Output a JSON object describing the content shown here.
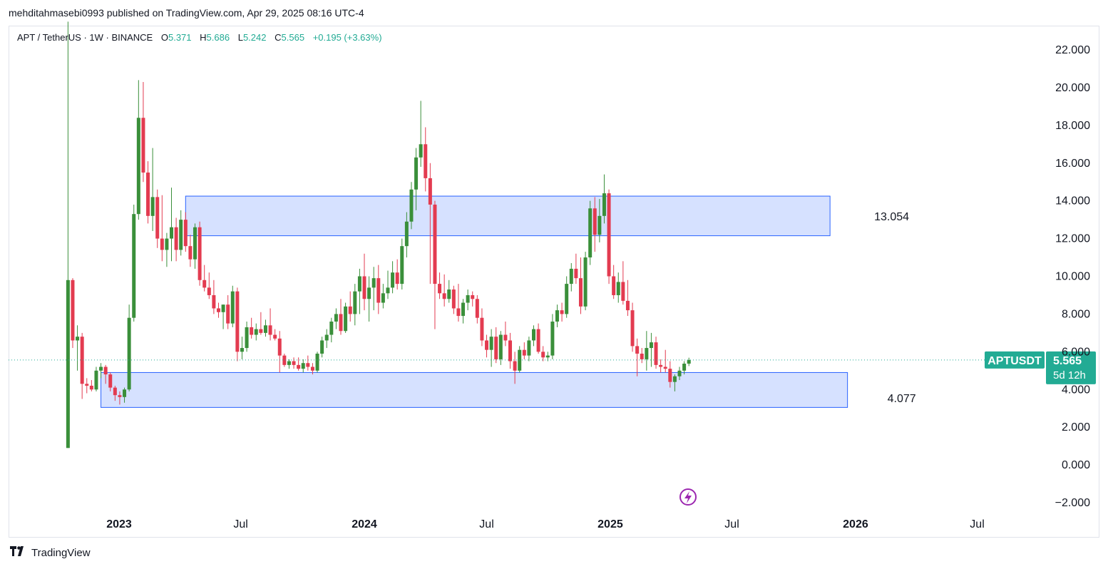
{
  "header": {
    "publish_line": "mehditahmasebi0993 published on TradingView.com, Apr 29, 2025 08:16 UTC-4"
  },
  "legend": {
    "symbol": "APT / TetherUS · 1W · BINANCE",
    "open_key": "O",
    "open_value": "5.371",
    "high_key": "H",
    "high_value": "5.686",
    "low_key": "L",
    "low_value": "5.242",
    "close_key": "C",
    "close_value": "5.565",
    "change": "+0.195 (+3.63%)"
  },
  "price_tag": {
    "symbol": "APTUSDT",
    "price": "5.565",
    "countdown": "5d 12h",
    "color": "#22ab94"
  },
  "colors": {
    "up": "#22ab94",
    "up_candle": "#3a8f3a",
    "down_candle": "#e33b50",
    "zone_fill": "#d6e1ff",
    "zone_border": "#2962ff",
    "pulse_icon": "#9c27b0"
  },
  "footer": {
    "brand": "TradingView",
    "logo_icon": "tradingview-logo-icon"
  },
  "chart_data": {
    "type": "candlestick",
    "title": "APT / TetherUS · 1W · BINANCE",
    "y_axis": {
      "ticks": [
        "22.000",
        "20.000",
        "18.000",
        "16.000",
        "14.000",
        "12.000",
        "10.000",
        "8.000",
        "6.000",
        "4.000",
        "2.000",
        "0.000",
        "−2.000"
      ],
      "range": [
        -2.6,
        23.4
      ],
      "side": "right"
    },
    "x_axis": {
      "ticks": [
        {
          "label": "2023",
          "date": "2023-01-01",
          "bold": true
        },
        {
          "label": "Jul",
          "date": "2023-07-01",
          "bold": false
        },
        {
          "label": "2024",
          "date": "2024-01-01",
          "bold": true
        },
        {
          "label": "Jul",
          "date": "2024-07-01",
          "bold": false
        },
        {
          "label": "2025",
          "date": "2025-01-01",
          "bold": true
        },
        {
          "label": "Jul",
          "date": "2025-07-01",
          "bold": false
        },
        {
          "label": "2026",
          "date": "2026-01-01",
          "bold": true
        },
        {
          "label": "Jul",
          "date": "2026-07-01",
          "bold": false
        }
      ]
    },
    "zones": [
      {
        "name": "resistance",
        "label": "13.054",
        "top": 14.25,
        "bottom": 12.15,
        "from": "2023-04-10",
        "to": "2025-11-24"
      },
      {
        "name": "support",
        "label": "4.077",
        "top": 4.9,
        "bottom": 3.05,
        "from": "2022-12-05",
        "to": "2025-12-20"
      }
    ],
    "last_price": 5.565,
    "candles": [
      [
        "2022-10-17",
        0.9,
        23.5,
        0.9,
        9.8
      ],
      [
        "2022-10-24",
        9.8,
        9.9,
        6.2,
        6.6
      ],
      [
        "2022-10-31",
        6.6,
        7.4,
        5.0,
        6.8
      ],
      [
        "2022-11-07",
        6.8,
        7.0,
        3.5,
        4.3
      ],
      [
        "2022-11-14",
        4.3,
        4.6,
        3.8,
        4.2
      ],
      [
        "2022-11-21",
        4.2,
        4.5,
        3.9,
        4.0
      ],
      [
        "2022-11-28",
        4.0,
        5.2,
        3.9,
        5.0
      ],
      [
        "2022-12-05",
        5.0,
        5.4,
        4.6,
        5.2
      ],
      [
        "2022-12-12",
        5.2,
        5.3,
        4.3,
        4.8
      ],
      [
        "2022-12-19",
        4.8,
        4.9,
        3.9,
        4.1
      ],
      [
        "2022-12-26",
        4.1,
        4.2,
        3.4,
        3.7
      ],
      [
        "2023-01-02",
        3.7,
        3.9,
        3.2,
        3.6
      ],
      [
        "2023-01-09",
        3.6,
        4.1,
        3.3,
        4.0
      ],
      [
        "2023-01-16",
        4.0,
        8.5,
        3.9,
        7.8
      ],
      [
        "2023-01-23",
        7.8,
        13.8,
        7.6,
        13.3
      ],
      [
        "2023-01-30",
        13.3,
        20.4,
        13.0,
        18.4
      ],
      [
        "2023-02-06",
        18.4,
        20.3,
        15.0,
        15.5
      ],
      [
        "2023-02-13",
        15.5,
        16.1,
        12.8,
        13.2
      ],
      [
        "2023-02-20",
        13.2,
        16.8,
        12.4,
        14.2
      ],
      [
        "2023-02-27",
        14.2,
        14.6,
        11.5,
        12.0
      ],
      [
        "2023-03-06",
        12.0,
        14.3,
        10.8,
        11.4
      ],
      [
        "2023-03-13",
        11.4,
        12.3,
        10.5,
        12.0
      ],
      [
        "2023-03-20",
        12.0,
        14.7,
        10.8,
        12.6
      ],
      [
        "2023-03-27",
        12.6,
        13.1,
        10.8,
        11.4
      ],
      [
        "2023-04-03",
        11.4,
        13.5,
        11.1,
        13.0
      ],
      [
        "2023-04-10",
        13.0,
        13.4,
        11.3,
        11.6
      ],
      [
        "2023-04-17",
        11.6,
        12.2,
        10.5,
        10.9
      ],
      [
        "2023-04-24",
        10.9,
        12.8,
        10.4,
        12.6
      ],
      [
        "2023-05-01",
        12.6,
        12.9,
        9.5,
        9.8
      ],
      [
        "2023-05-08",
        9.8,
        10.6,
        9.2,
        9.4
      ],
      [
        "2023-05-15",
        9.4,
        10.2,
        8.8,
        9.0
      ],
      [
        "2023-05-22",
        9.0,
        9.8,
        8.0,
        8.3
      ],
      [
        "2023-05-29",
        8.3,
        8.6,
        7.8,
        8.1
      ],
      [
        "2023-06-05",
        8.1,
        8.5,
        7.2,
        8.5
      ],
      [
        "2023-06-12",
        8.5,
        9.0,
        7.2,
        7.5
      ],
      [
        "2023-06-19",
        7.5,
        9.5,
        7.3,
        9.2
      ],
      [
        "2023-06-26",
        9.2,
        9.4,
        5.5,
        6.0
      ],
      [
        "2023-07-03",
        6.0,
        6.8,
        5.6,
        6.2
      ],
      [
        "2023-07-10",
        6.2,
        7.6,
        6.0,
        7.3
      ],
      [
        "2023-07-17",
        7.3,
        7.8,
        6.7,
        6.9
      ],
      [
        "2023-07-24",
        6.9,
        7.5,
        6.6,
        7.2
      ],
      [
        "2023-07-31",
        7.2,
        8.1,
        6.9,
        7.0
      ],
      [
        "2023-08-07",
        7.0,
        7.7,
        6.8,
        7.4
      ],
      [
        "2023-08-14",
        7.4,
        8.3,
        6.6,
        6.9
      ],
      [
        "2023-08-21",
        6.9,
        7.2,
        6.6,
        6.7
      ],
      [
        "2023-08-28",
        6.7,
        7.1,
        4.9,
        5.8
      ],
      [
        "2023-09-04",
        5.8,
        5.9,
        5.2,
        5.3
      ],
      [
        "2023-09-11",
        5.3,
        5.6,
        5.1,
        5.5
      ],
      [
        "2023-09-18",
        5.5,
        5.7,
        5.1,
        5.3
      ],
      [
        "2023-09-25",
        5.3,
        5.7,
        5.0,
        5.1
      ],
      [
        "2023-10-02",
        5.1,
        5.6,
        4.9,
        5.4
      ],
      [
        "2023-10-09",
        5.4,
        5.8,
        5.0,
        5.2
      ],
      [
        "2023-10-16",
        5.2,
        5.4,
        4.8,
        5.0
      ],
      [
        "2023-10-23",
        5.0,
        6.0,
        4.9,
        5.9
      ],
      [
        "2023-10-30",
        5.9,
        6.8,
        5.7,
        6.6
      ],
      [
        "2023-11-06",
        6.6,
        7.2,
        6.2,
        6.9
      ],
      [
        "2023-11-13",
        6.9,
        7.8,
        6.5,
        7.6
      ],
      [
        "2023-11-20",
        7.6,
        8.3,
        7.2,
        8.0
      ],
      [
        "2023-11-27",
        8.0,
        8.8,
        6.9,
        7.1
      ],
      [
        "2023-12-04",
        7.1,
        8.6,
        7.0,
        8.4
      ],
      [
        "2023-12-11",
        8.4,
        9.2,
        7.6,
        8.0
      ],
      [
        "2023-12-18",
        8.0,
        9.6,
        7.4,
        9.2
      ],
      [
        "2023-12-25",
        9.2,
        10.4,
        8.0,
        10.0
      ],
      [
        "2024-01-01",
        10.0,
        11.2,
        8.2,
        8.8
      ],
      [
        "2024-01-08",
        8.8,
        10.0,
        7.6,
        9.4
      ],
      [
        "2024-01-15",
        9.4,
        10.5,
        8.2,
        9.9
      ],
      [
        "2024-01-22",
        9.9,
        10.6,
        8.0,
        8.6
      ],
      [
        "2024-01-29",
        8.6,
        9.6,
        8.3,
        9.1
      ],
      [
        "2024-02-05",
        9.1,
        10.3,
        8.8,
        9.4
      ],
      [
        "2024-02-12",
        9.4,
        10.8,
        9.1,
        10.2
      ],
      [
        "2024-02-19",
        10.2,
        10.9,
        9.3,
        9.6
      ],
      [
        "2024-02-26",
        9.6,
        12.0,
        9.3,
        11.6
      ],
      [
        "2024-03-04",
        11.6,
        13.4,
        11.0,
        12.9
      ],
      [
        "2024-03-11",
        12.9,
        15.0,
        12.5,
        14.6
      ],
      [
        "2024-03-18",
        14.6,
        16.8,
        13.5,
        16.3
      ],
      [
        "2024-03-25",
        16.3,
        19.3,
        15.8,
        17.0
      ],
      [
        "2024-04-01",
        17.0,
        17.9,
        14.5,
        15.2
      ],
      [
        "2024-04-08",
        15.2,
        16.0,
        9.6,
        13.8
      ],
      [
        "2024-04-15",
        13.8,
        14.0,
        7.2,
        9.6
      ],
      [
        "2024-04-22",
        9.6,
        10.2,
        8.8,
        9.1
      ],
      [
        "2024-04-29",
        9.1,
        10.1,
        8.4,
        8.8
      ],
      [
        "2024-05-06",
        8.8,
        9.8,
        8.6,
        9.3
      ],
      [
        "2024-05-13",
        9.3,
        9.5,
        8.0,
        8.3
      ],
      [
        "2024-05-20",
        8.3,
        9.6,
        7.6,
        7.9
      ],
      [
        "2024-05-27",
        7.9,
        8.8,
        7.5,
        8.6
      ],
      [
        "2024-06-03",
        8.6,
        9.3,
        8.2,
        9.0
      ],
      [
        "2024-06-10",
        9.0,
        9.2,
        8.4,
        8.8
      ],
      [
        "2024-06-17",
        8.8,
        9.0,
        7.5,
        7.8
      ],
      [
        "2024-06-24",
        7.8,
        8.3,
        6.3,
        6.6
      ],
      [
        "2024-07-01",
        6.6,
        6.9,
        5.7,
        6.1
      ],
      [
        "2024-07-08",
        6.1,
        7.2,
        5.2,
        6.8
      ],
      [
        "2024-07-15",
        6.8,
        7.3,
        5.4,
        5.6
      ],
      [
        "2024-07-22",
        5.6,
        7.1,
        5.3,
        6.9
      ],
      [
        "2024-07-29",
        6.9,
        7.6,
        6.3,
        6.6
      ],
      [
        "2024-08-05",
        6.6,
        7.0,
        5.1,
        5.5
      ],
      [
        "2024-08-12",
        5.5,
        6.0,
        4.3,
        5.0
      ],
      [
        "2024-08-19",
        5.0,
        6.3,
        4.9,
        6.1
      ],
      [
        "2024-08-26",
        6.1,
        6.5,
        5.6,
        5.8
      ],
      [
        "2024-09-02",
        5.8,
        6.8,
        5.5,
        6.6
      ],
      [
        "2024-09-09",
        6.6,
        7.4,
        6.3,
        7.2
      ],
      [
        "2024-09-16",
        7.2,
        7.5,
        5.9,
        6.0
      ],
      [
        "2024-09-23",
        6.0,
        6.3,
        5.5,
        5.7
      ],
      [
        "2024-09-30",
        5.7,
        6.0,
        5.5,
        5.8
      ],
      [
        "2024-10-07",
        5.8,
        8.0,
        5.6,
        7.6
      ],
      [
        "2024-10-14",
        7.6,
        8.5,
        7.3,
        8.2
      ],
      [
        "2024-10-21",
        8.2,
        8.6,
        7.6,
        8.0
      ],
      [
        "2024-10-28",
        8.0,
        10.0,
        7.8,
        9.6
      ],
      [
        "2024-11-04",
        9.6,
        10.7,
        9.2,
        10.4
      ],
      [
        "2024-11-11",
        10.4,
        11.2,
        9.6,
        9.9
      ],
      [
        "2024-11-18",
        9.9,
        11.0,
        8.0,
        8.4
      ],
      [
        "2024-11-25",
        8.4,
        11.3,
        8.2,
        11.0
      ],
      [
        "2024-12-02",
        11.0,
        14.0,
        10.6,
        13.6
      ],
      [
        "2024-12-09",
        13.6,
        14.2,
        11.3,
        12.2
      ],
      [
        "2024-12-16",
        12.2,
        14.1,
        11.8,
        13.2
      ],
      [
        "2024-12-23",
        13.2,
        15.4,
        12.8,
        14.4
      ],
      [
        "2024-12-30",
        14.4,
        14.6,
        9.6,
        10.0
      ],
      [
        "2025-01-06",
        10.0,
        10.6,
        8.8,
        9.0
      ],
      [
        "2025-01-13",
        9.0,
        10.2,
        8.6,
        9.7
      ],
      [
        "2025-01-20",
        9.7,
        10.8,
        8.5,
        8.7
      ],
      [
        "2025-01-27",
        8.7,
        9.8,
        7.9,
        8.2
      ],
      [
        "2025-02-03",
        8.2,
        8.6,
        6.0,
        6.3
      ],
      [
        "2025-02-10",
        6.3,
        6.7,
        4.7,
        5.9
      ],
      [
        "2025-02-17",
        5.9,
        6.2,
        5.4,
        5.6
      ],
      [
        "2025-02-24",
        5.6,
        7.1,
        5.0,
        6.2
      ],
      [
        "2025-03-03",
        6.2,
        7.0,
        5.2,
        6.5
      ],
      [
        "2025-03-10",
        6.5,
        6.8,
        5.1,
        5.3
      ],
      [
        "2025-03-17",
        5.3,
        5.6,
        4.9,
        5.2
      ],
      [
        "2025-03-24",
        5.2,
        6.1,
        4.9,
        5.1
      ],
      [
        "2025-03-31",
        5.1,
        5.5,
        4.1,
        4.4
      ],
      [
        "2025-04-07",
        4.4,
        4.8,
        3.9,
        4.7
      ],
      [
        "2025-04-14",
        4.7,
        5.2,
        4.5,
        5.0
      ],
      [
        "2025-04-21",
        5.0,
        5.5,
        4.8,
        5.37
      ],
      [
        "2025-04-28",
        5.371,
        5.686,
        5.242,
        5.565
      ]
    ]
  }
}
